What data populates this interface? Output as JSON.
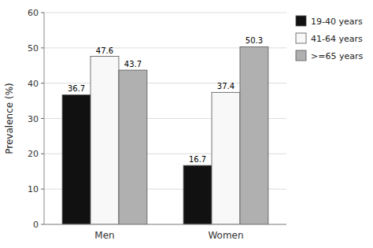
{
  "chart_data": {
    "type": "bar",
    "categories": [
      "Men",
      "Women"
    ],
    "series": [
      {
        "name": "19-40 years",
        "values": [
          36.7,
          16.7
        ],
        "color": "#111111"
      },
      {
        "name": "41-64 years",
        "values": [
          47.6,
          37.4
        ],
        "color": "#f8f8f8"
      },
      {
        "name": ">=65 years",
        "values": [
          43.7,
          50.3
        ],
        "color": "#b0b0b0"
      }
    ],
    "ylabel": "Prevalence (%)",
    "ylim": [
      0,
      60
    ],
    "yticks": [
      0,
      10,
      20,
      30,
      40,
      50,
      60
    ],
    "grid": true,
    "data_labels": true,
    "legend": "right"
  }
}
